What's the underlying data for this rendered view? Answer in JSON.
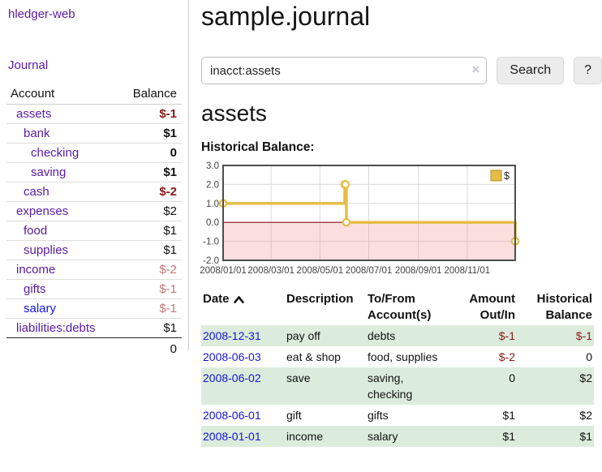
{
  "colors": {
    "link_purple": "#5a1aa5",
    "link_blue": "#1414d6",
    "negative_strong": "#8b1717",
    "negative_soft": "#c17878",
    "row_highlight_green": "#dcecdc",
    "chart_line_gold": "#e5bc44",
    "chart_negative_pink": "rgba(242,138,138,0.27)",
    "chart_zero_line": "#8b1414"
  },
  "app": {
    "title": "hledger-web"
  },
  "sidebar": {
    "journal_link": "Journal",
    "headers": {
      "account": "Account",
      "balance": "Balance"
    },
    "accounts": [
      {
        "name": "assets",
        "depth": 0,
        "bold": true,
        "blue": false,
        "balance": "$-1",
        "balance_style": "neg-strong"
      },
      {
        "name": "bank",
        "depth": 1,
        "bold": true,
        "blue": false,
        "balance": "$1",
        "balance_style": "normal"
      },
      {
        "name": "checking",
        "depth": 2,
        "bold": true,
        "blue": false,
        "balance": "0",
        "balance_style": "normal"
      },
      {
        "name": "saving",
        "depth": 2,
        "bold": true,
        "blue": false,
        "balance": "$1",
        "balance_style": "normal"
      },
      {
        "name": "cash",
        "depth": 1,
        "bold": true,
        "blue": false,
        "balance": "$-2",
        "balance_style": "neg-strong"
      },
      {
        "name": "expenses",
        "depth": 0,
        "bold": false,
        "blue": false,
        "balance": "$2",
        "balance_style": "normal"
      },
      {
        "name": "food",
        "depth": 1,
        "bold": false,
        "blue": false,
        "balance": "$1",
        "balance_style": "normal"
      },
      {
        "name": "supplies",
        "depth": 1,
        "bold": false,
        "blue": false,
        "balance": "$1",
        "balance_style": "normal"
      },
      {
        "name": "income",
        "depth": 0,
        "bold": false,
        "blue": false,
        "balance": "$-2",
        "balance_style": "neg-soft"
      },
      {
        "name": "gifts",
        "depth": 1,
        "bold": false,
        "blue": false,
        "balance": "$-1",
        "balance_style": "neg-soft"
      },
      {
        "name": "salary",
        "depth": 1,
        "bold": false,
        "blue": true,
        "balance": "$-1",
        "balance_style": "neg-soft"
      },
      {
        "name": "liabilities:debts",
        "depth": 0,
        "bold": false,
        "blue": false,
        "balance": "$1",
        "balance_style": "normal"
      }
    ],
    "total": "0"
  },
  "main": {
    "title": "sample.journal",
    "search": {
      "value": "inacct:assets",
      "clear_icon": "×",
      "button_label": "Search",
      "help_label": "?"
    },
    "account_heading": "assets",
    "section_label": "Historical Balance:"
  },
  "chart_data": {
    "type": "line",
    "title": "Historical Balance:",
    "step": true,
    "series": [
      {
        "name": "$",
        "color": "#e5bc44",
        "points": [
          {
            "date": "2008-01-01",
            "value": 1
          },
          {
            "date": "2008-06-01",
            "value": 2
          },
          {
            "date": "2008-06-02",
            "value": 2
          },
          {
            "date": "2008-06-03",
            "value": 0
          },
          {
            "date": "2008-12-31",
            "value": -1
          }
        ]
      }
    ],
    "x_range": [
      "2008-01-01",
      "2008-12-31"
    ],
    "x_ticks": [
      {
        "date": "2008-01-01",
        "label": "2008/01/01"
      },
      {
        "date": "2008-03-01",
        "label": "2008/03/01"
      },
      {
        "date": "2008-05-01",
        "label": "2008/05/01"
      },
      {
        "date": "2008-07-01",
        "label": "2008/07/01"
      },
      {
        "date": "2008-09-01",
        "label": "2008/09/01"
      },
      {
        "date": "2008-11-01",
        "label": "2008/11/01"
      }
    ],
    "y_ticks": [
      3,
      2,
      1,
      0,
      -1,
      -2
    ],
    "ylim": [
      -2,
      3
    ],
    "grid": true,
    "negative_region_shaded": true,
    "zero_line_color": "#8b1414",
    "negative_region_color": "rgba(242,138,138,0.27)",
    "legend": {
      "label": "$",
      "position": "top-right"
    }
  },
  "register": {
    "headers": {
      "date": "Date",
      "description": "Description",
      "accounts": "To/From Account(s)",
      "amount": "Amount Out/In",
      "balance": "Historical Balance"
    },
    "sort": {
      "column": "date",
      "direction": "ascending",
      "icon": "chevron-up"
    },
    "rows": [
      {
        "date": "2008-12-31",
        "description": "pay off",
        "accounts": "debts",
        "amount": "$-1",
        "amount_negative": true,
        "balance": "$-1",
        "balance_negative": true,
        "highlighted": true
      },
      {
        "date": "2008-06-03",
        "description": "eat & shop",
        "accounts": "food, supplies",
        "amount": "$-2",
        "amount_negative": true,
        "balance": "0",
        "balance_negative": false,
        "highlighted": false
      },
      {
        "date": "2008-06-02",
        "description": "save",
        "accounts": "saving, checking",
        "amount": "0",
        "amount_negative": false,
        "balance": "$2",
        "balance_negative": false,
        "highlighted": true
      },
      {
        "date": "2008-06-01",
        "description": "gift",
        "accounts": "gifts",
        "amount": "$1",
        "amount_negative": false,
        "balance": "$2",
        "balance_negative": false,
        "highlighted": false
      },
      {
        "date": "2008-01-01",
        "description": "income",
        "accounts": "salary",
        "amount": "$1",
        "amount_negative": false,
        "balance": "$1",
        "balance_negative": false,
        "highlighted": true
      }
    ]
  }
}
